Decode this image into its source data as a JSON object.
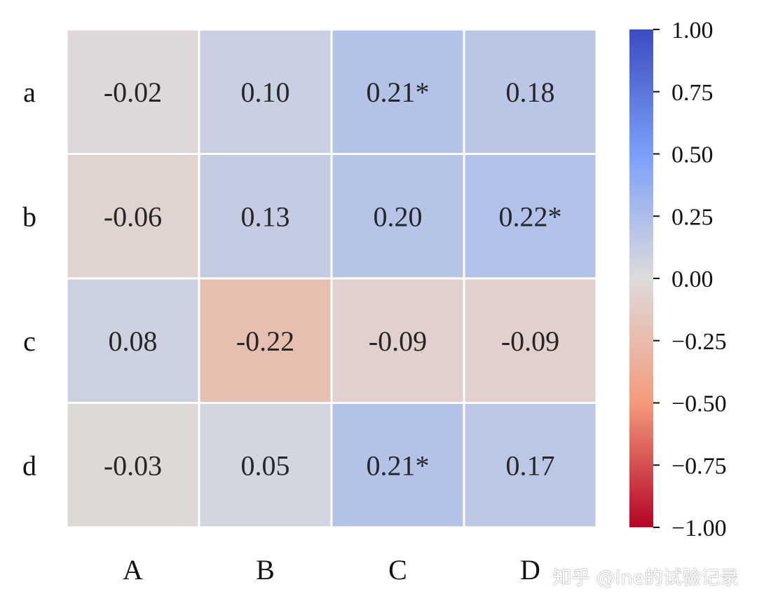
{
  "chart_data": {
    "type": "heatmap",
    "title": "",
    "xlabel": "",
    "ylabel": "",
    "x_categories": [
      "A",
      "B",
      "C",
      "D"
    ],
    "y_categories": [
      "a",
      "b",
      "c",
      "d"
    ],
    "values": [
      [
        -0.02,
        0.1,
        0.21,
        0.18
      ],
      [
        -0.06,
        0.13,
        0.2,
        0.22
      ],
      [
        0.08,
        -0.22,
        -0.09,
        -0.09
      ],
      [
        -0.03,
        0.05,
        0.21,
        0.17
      ]
    ],
    "annotations": [
      [
        "-0.02",
        "0.10",
        "0.21*",
        "0.18"
      ],
      [
        "-0.06",
        "0.13",
        "0.20",
        "0.22*"
      ],
      [
        "0.08",
        "-0.22",
        "-0.09",
        "-0.09"
      ],
      [
        "-0.03",
        "0.05",
        "0.21*",
        "0.17"
      ]
    ],
    "colormap": "coolwarm_r",
    "vmin": -1.0,
    "vmax": 1.0,
    "colorbar": {
      "placement": "right",
      "ticks": [
        1.0,
        0.75,
        0.5,
        0.25,
        0.0,
        -0.25,
        -0.5,
        -0.75,
        -1.0
      ],
      "tick_labels": [
        "1.00",
        "0.75",
        "0.50",
        "0.25",
        "0.00",
        "−0.25",
        "−0.50",
        "−0.75",
        "−1.00"
      ],
      "colors": {
        "top": "#3b4cc0",
        "upper": "#7b9ff9",
        "middle": "#dddcdc",
        "lower": "#f49a7b",
        "bottom": "#b40426"
      }
    },
    "grid": false
  },
  "watermark": "知乎 @lne的试验记录"
}
